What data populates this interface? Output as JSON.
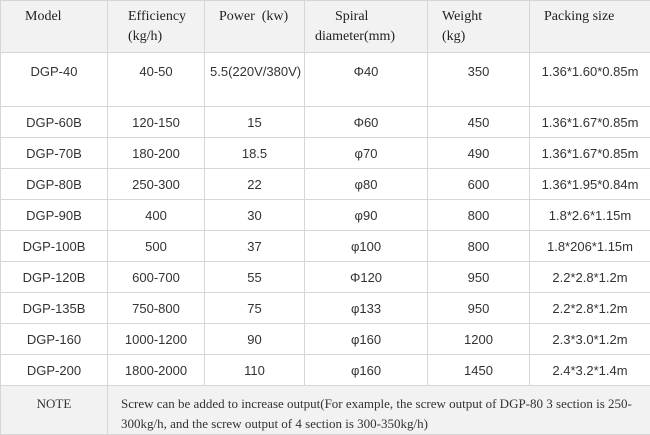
{
  "headers": {
    "model": "Model",
    "efficiency_line1": "Efficiency",
    "efficiency_line2": "(kg/h)",
    "power": "Power  (kw)",
    "spiral_line1": "Spiral",
    "spiral_line2": "diameter(mm)",
    "weight_line1": "Weight",
    "weight_line2": "(kg)",
    "packing": "Packing size"
  },
  "rows": [
    {
      "model": "DGP-40",
      "efficiency": "40-50",
      "power": "5.5(220V/380V)",
      "spiral": "Φ40",
      "weight": "350",
      "packing": "1.36*1.60*0.85m"
    },
    {
      "model": "DGP-60B",
      "efficiency": "120-150",
      "power": "15",
      "spiral": "Φ60",
      "weight": "450",
      "packing": "1.36*1.67*0.85m"
    },
    {
      "model": "DGP-70B",
      "efficiency": "180-200",
      "power": "18.5",
      "spiral": "φ70",
      "weight": "490",
      "packing": "1.36*1.67*0.85m"
    },
    {
      "model": "DGP-80B",
      "efficiency": "250-300",
      "power": "22",
      "spiral": "φ80",
      "weight": "600",
      "packing": "1.36*1.95*0.84m"
    },
    {
      "model": "DGP-90B",
      "efficiency": "400",
      "power": "30",
      "spiral": "φ90",
      "weight": "800",
      "packing": "1.8*2.6*1.15m"
    },
    {
      "model": "DGP-100B",
      "efficiency": "500",
      "power": "37",
      "spiral": "φ100",
      "weight": "800",
      "packing": "1.8*206*1.15m"
    },
    {
      "model": "DGP-120B",
      "efficiency": "600-700",
      "power": "55",
      "spiral": "Φ120",
      "weight": "950",
      "packing": "2.2*2.8*1.2m"
    },
    {
      "model": "DGP-135B",
      "efficiency": "750-800",
      "power": "75",
      "spiral": "φ133",
      "weight": "950",
      "packing": "2.2*2.8*1.2m"
    },
    {
      "model": "DGP-160",
      "efficiency": "1000-1200",
      "power": "90",
      "spiral": "φ160",
      "weight": "1200",
      "packing": "2.3*3.0*1.2m"
    },
    {
      "model": "DGP-200",
      "efficiency": "1800-2000",
      "power": "110",
      "spiral": "φ160",
      "weight": "1450",
      "packing": "2.4*3.2*1.4m"
    }
  ],
  "note": {
    "label": "NOTE",
    "text": "Screw can be added to increase output(For example, the screw output of DGP-80 3 section is 250-300kg/h, and the screw output of 4 section is 300-350kg/h)"
  }
}
